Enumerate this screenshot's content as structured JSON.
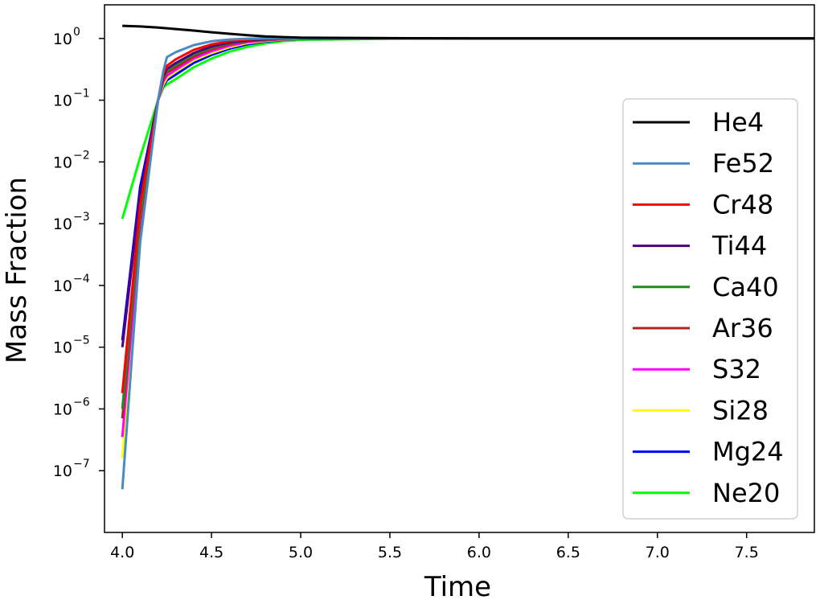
{
  "chart_data": {
    "type": "line",
    "title": "",
    "xlabel": "Time",
    "ylabel": "Mass Fraction",
    "yscale": "log",
    "xlim": [
      3.9,
      7.88
    ],
    "ylim": [
      1e-08,
      3.5
    ],
    "xticks": [
      "4.0",
      "4.5",
      "5.0",
      "5.5",
      "6.0",
      "6.5",
      "7.0",
      "7.5"
    ],
    "xtick_values": [
      4.0,
      4.5,
      5.0,
      5.5,
      6.0,
      6.5,
      7.0,
      7.5
    ],
    "yticks": [
      {
        "base": "10",
        "exp": "0",
        "value": 1
      },
      {
        "base": "10",
        "exp": "−1",
        "value": 0.1
      },
      {
        "base": "10",
        "exp": "−2",
        "value": 0.01
      },
      {
        "base": "10",
        "exp": "−3",
        "value": 0.001
      },
      {
        "base": "10",
        "exp": "−4",
        "value": 0.0001
      },
      {
        "base": "10",
        "exp": "−5",
        "value": 1e-05
      },
      {
        "base": "10",
        "exp": "−6",
        "value": 1e-06
      },
      {
        "base": "10",
        "exp": "−7",
        "value": 1e-07
      }
    ],
    "grid": false,
    "legend_position": "right",
    "series": [
      {
        "name": "He4",
        "color": "#000000",
        "x": [
          4.0,
          4.1,
          4.2,
          4.3,
          4.4,
          4.5,
          4.6,
          4.7,
          4.8,
          4.9,
          5.0,
          5.5,
          6.0,
          7.0,
          7.88
        ],
        "y": [
          1.6,
          1.56,
          1.5,
          1.42,
          1.34,
          1.26,
          1.19,
          1.13,
          1.08,
          1.05,
          1.03,
          1.01,
          1.0,
          1.0,
          1.0
        ]
      },
      {
        "name": "Fe52",
        "color": "#4a8bc4",
        "x": [
          4.0,
          4.1,
          4.2,
          4.23,
          4.25,
          4.3,
          4.4,
          4.5,
          4.6,
          4.7,
          4.8,
          4.9,
          5.0,
          5.5,
          6.0,
          7.0,
          7.88
        ],
        "y": [
          5e-08,
          0.0005,
          0.1,
          0.3,
          0.5,
          0.6,
          0.78,
          0.9,
          0.96,
          0.99,
          1.0,
          1.0,
          1.0,
          1.0,
          1.0,
          1.0,
          1.0
        ]
      },
      {
        "name": "Cr48",
        "color": "#ff0000",
        "x": [
          4.0,
          4.1,
          4.2,
          4.23,
          4.25,
          4.3,
          4.4,
          4.5,
          4.6,
          4.7,
          4.8,
          4.9,
          5.0,
          5.5,
          6.0,
          7.0,
          7.88
        ],
        "y": [
          1.8e-06,
          0.002,
          0.1,
          0.27,
          0.36,
          0.46,
          0.65,
          0.8,
          0.9,
          0.96,
          0.99,
          1.0,
          1.0,
          1.0,
          1.0,
          1.0,
          1.0
        ]
      },
      {
        "name": "Ti44",
        "color": "#4b0082",
        "x": [
          4.0,
          4.1,
          4.2,
          4.23,
          4.25,
          4.3,
          4.4,
          4.5,
          4.6,
          4.7,
          4.8,
          4.9,
          5.0,
          5.5,
          6.0,
          7.0,
          7.88
        ],
        "y": [
          1e-05,
          0.003,
          0.1,
          0.25,
          0.32,
          0.4,
          0.58,
          0.74,
          0.86,
          0.93,
          0.97,
          0.99,
          1.0,
          1.0,
          1.0,
          1.0,
          1.0
        ]
      },
      {
        "name": "Ca40",
        "color": "#228b22",
        "x": [
          4.0,
          4.1,
          4.2,
          4.23,
          4.25,
          4.3,
          4.4,
          4.5,
          4.6,
          4.7,
          4.8,
          4.9,
          5.0,
          5.5,
          6.0,
          7.0,
          7.88
        ],
        "y": [
          1e-06,
          0.0015,
          0.1,
          0.24,
          0.3,
          0.37,
          0.55,
          0.71,
          0.84,
          0.92,
          0.96,
          0.99,
          1.0,
          1.0,
          1.0,
          1.0,
          1.0
        ]
      },
      {
        "name": "Ar36",
        "color": "#b22222",
        "x": [
          4.0,
          4.1,
          4.2,
          4.23,
          4.25,
          4.3,
          4.4,
          4.5,
          4.6,
          4.7,
          4.8,
          4.9,
          5.0,
          5.5,
          6.0,
          7.0,
          7.88
        ],
        "y": [
          7e-07,
          0.0012,
          0.1,
          0.22,
          0.28,
          0.34,
          0.51,
          0.67,
          0.81,
          0.9,
          0.95,
          0.98,
          1.0,
          1.0,
          1.0,
          1.0,
          1.0
        ]
      },
      {
        "name": "S32",
        "color": "#ff00ff",
        "x": [
          4.0,
          4.1,
          4.2,
          4.23,
          4.25,
          4.3,
          4.4,
          4.5,
          4.6,
          4.7,
          4.8,
          4.9,
          5.0,
          5.5,
          6.0,
          7.0,
          7.88
        ],
        "y": [
          3.5e-07,
          0.0009,
          0.1,
          0.2,
          0.25,
          0.31,
          0.47,
          0.62,
          0.76,
          0.87,
          0.93,
          0.97,
          0.99,
          1.0,
          1.0,
          1.0,
          1.0
        ]
      },
      {
        "name": "Si28",
        "color": "#ffff00",
        "x": [
          4.0,
          4.1,
          4.2,
          4.23,
          4.25,
          4.3,
          4.4,
          4.5,
          4.6,
          4.7,
          4.8,
          4.9,
          5.0,
          5.5,
          6.0,
          7.0,
          7.88
        ],
        "y": [
          1.6e-07,
          0.0006,
          0.1,
          0.18,
          0.23,
          0.29,
          0.44,
          0.58,
          0.72,
          0.84,
          0.91,
          0.96,
          0.99,
          1.0,
          1.0,
          1.0,
          1.0
        ]
      },
      {
        "name": "Mg24",
        "color": "#0000ff",
        "x": [
          4.0,
          4.1,
          4.2,
          4.23,
          4.25,
          4.3,
          4.4,
          4.5,
          4.6,
          4.7,
          4.8,
          4.9,
          5.0,
          5.5,
          6.0,
          7.0,
          7.88
        ],
        "y": [
          1.3e-05,
          0.004,
          0.1,
          0.17,
          0.21,
          0.26,
          0.4,
          0.54,
          0.68,
          0.8,
          0.89,
          0.95,
          0.98,
          1.0,
          1.0,
          1.0,
          1.0
        ]
      },
      {
        "name": "Ne20",
        "color": "#00ff00",
        "x": [
          4.0,
          4.1,
          4.2,
          4.23,
          4.25,
          4.3,
          4.4,
          4.5,
          4.6,
          4.7,
          4.8,
          4.9,
          5.0,
          5.5,
          6.0,
          7.0,
          7.88
        ],
        "y": [
          0.0012,
          0.012,
          0.1,
          0.16,
          0.18,
          0.22,
          0.34,
          0.47,
          0.61,
          0.73,
          0.83,
          0.9,
          0.95,
          0.99,
          1.0,
          1.0,
          1.0
        ]
      }
    ]
  }
}
